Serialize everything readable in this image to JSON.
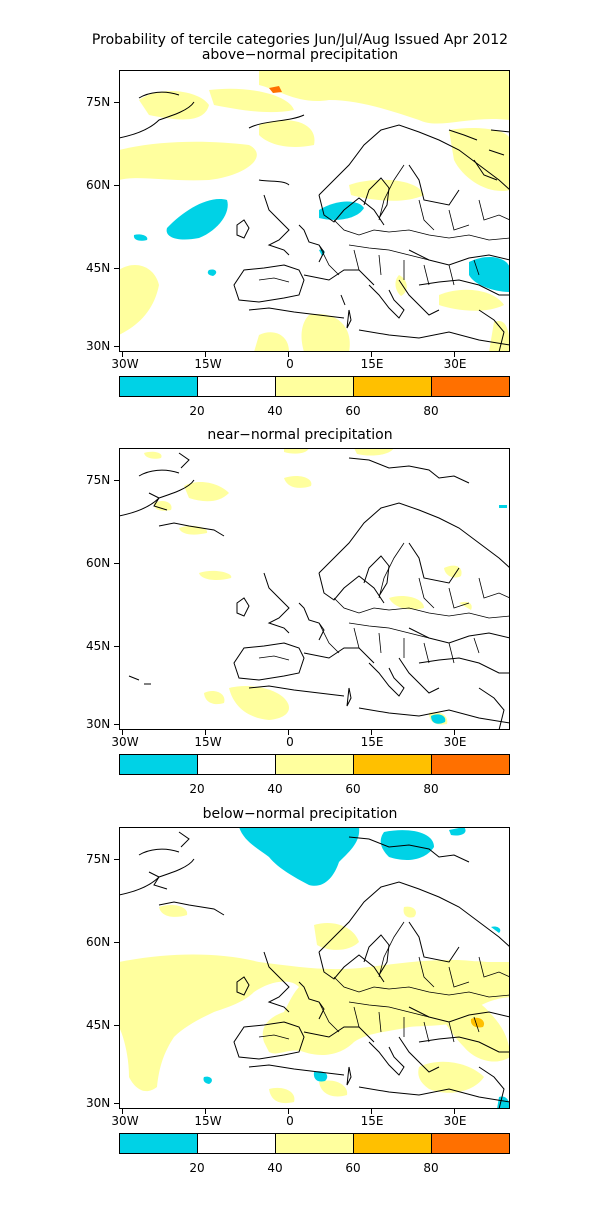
{
  "title": "Probability of tercile categories Jun/Jul/Aug Issued Apr 2012",
  "panels": [
    {
      "subtitle": "above−normal precipitation"
    },
    {
      "subtitle": "near−normal precipitation"
    },
    {
      "subtitle": "below−normal precipitation"
    }
  ],
  "lat_labels": [
    "75N",
    "60N",
    "45N",
    "30N"
  ],
  "lon_labels": [
    "30W",
    "15W",
    "0",
    "15E",
    "30E"
  ],
  "colorbar": {
    "colors": [
      "#00d2e6",
      "#ffffff",
      "#ffff9e",
      "#ffc000",
      "#ff7000"
    ],
    "labels": [
      "20",
      "40",
      "60",
      "80"
    ]
  },
  "colors": {
    "land_outline": "#000000",
    "low_prob": "#00d2e6",
    "mid_prob": "#ffff9e",
    "high_prob": "#ffc000",
    "very_high_prob": "#ff7000"
  }
}
